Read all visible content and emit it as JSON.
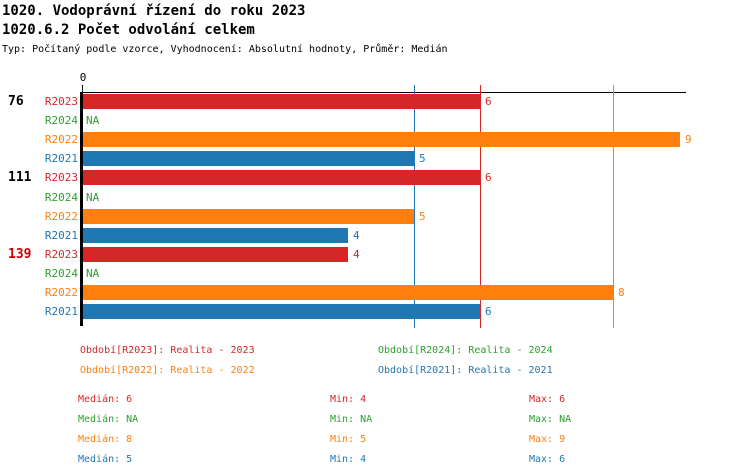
{
  "chart_data": {
    "type": "bar",
    "orientation": "horizontal",
    "title": "1020. Vodoprávní řízení do roku 2023",
    "subtitle": "1020.6.2 Počet odvolání celkem",
    "meta_line": "Typ: Počítaný podle vzorce, Vyhodnocení: Absolutní hodnoty, Průměr: Medián",
    "axis": {
      "zero_label": "0",
      "xlim": [
        0,
        9.1
      ],
      "grid": false
    },
    "na_text": "NA",
    "series": [
      {
        "id": "R2023",
        "color": "#d62728",
        "legend": "Období[R2023]: Realita - 2023"
      },
      {
        "id": "R2024",
        "color": "#2ca02c",
        "legend": "Období[R2024]: Realita - 2024"
      },
      {
        "id": "R2022",
        "color": "#ff7f0e",
        "legend": "Období[R2022]: Realita - 2022"
      },
      {
        "id": "R2021",
        "color": "#1f77b4",
        "legend": "Období[R2021]: Realita - 2021"
      }
    ],
    "row_order": [
      "R2023",
      "R2024",
      "R2022",
      "R2021"
    ],
    "groups": [
      {
        "label": "76",
        "label_color": "#000000",
        "values": {
          "R2023": 6,
          "R2024": null,
          "R2022": 9,
          "R2021": 5
        }
      },
      {
        "label": "111",
        "label_color": "#000000",
        "values": {
          "R2023": 6,
          "R2024": null,
          "R2022": 5,
          "R2021": 4
        }
      },
      {
        "label": "139",
        "label_color": "#cc0000",
        "values": {
          "R2023": 4,
          "R2024": null,
          "R2022": 8,
          "R2021": 6
        }
      }
    ],
    "median_lines": [
      {
        "series": "R2021",
        "value": 5
      },
      {
        "series": "R2023",
        "value": 6
      },
      {
        "series": "R2022",
        "value": 8
      }
    ],
    "legend_layout": [
      [
        "R2023",
        "R2024"
      ],
      [
        "R2022",
        "R2021"
      ]
    ],
    "stats": [
      {
        "series": "R2023",
        "median": "Medián: 6",
        "min": "Min: 4",
        "max": "Max: 6"
      },
      {
        "series": "R2024",
        "median": "Medián: NA",
        "min": "Min: NA",
        "max": "Max: NA"
      },
      {
        "series": "R2022",
        "median": "Medián: 8",
        "min": "Min: 5",
        "max": "Max: 9"
      },
      {
        "series": "R2021",
        "median": "Medián: 5",
        "min": "Min: 4",
        "max": "Max: 6"
      }
    ]
  }
}
